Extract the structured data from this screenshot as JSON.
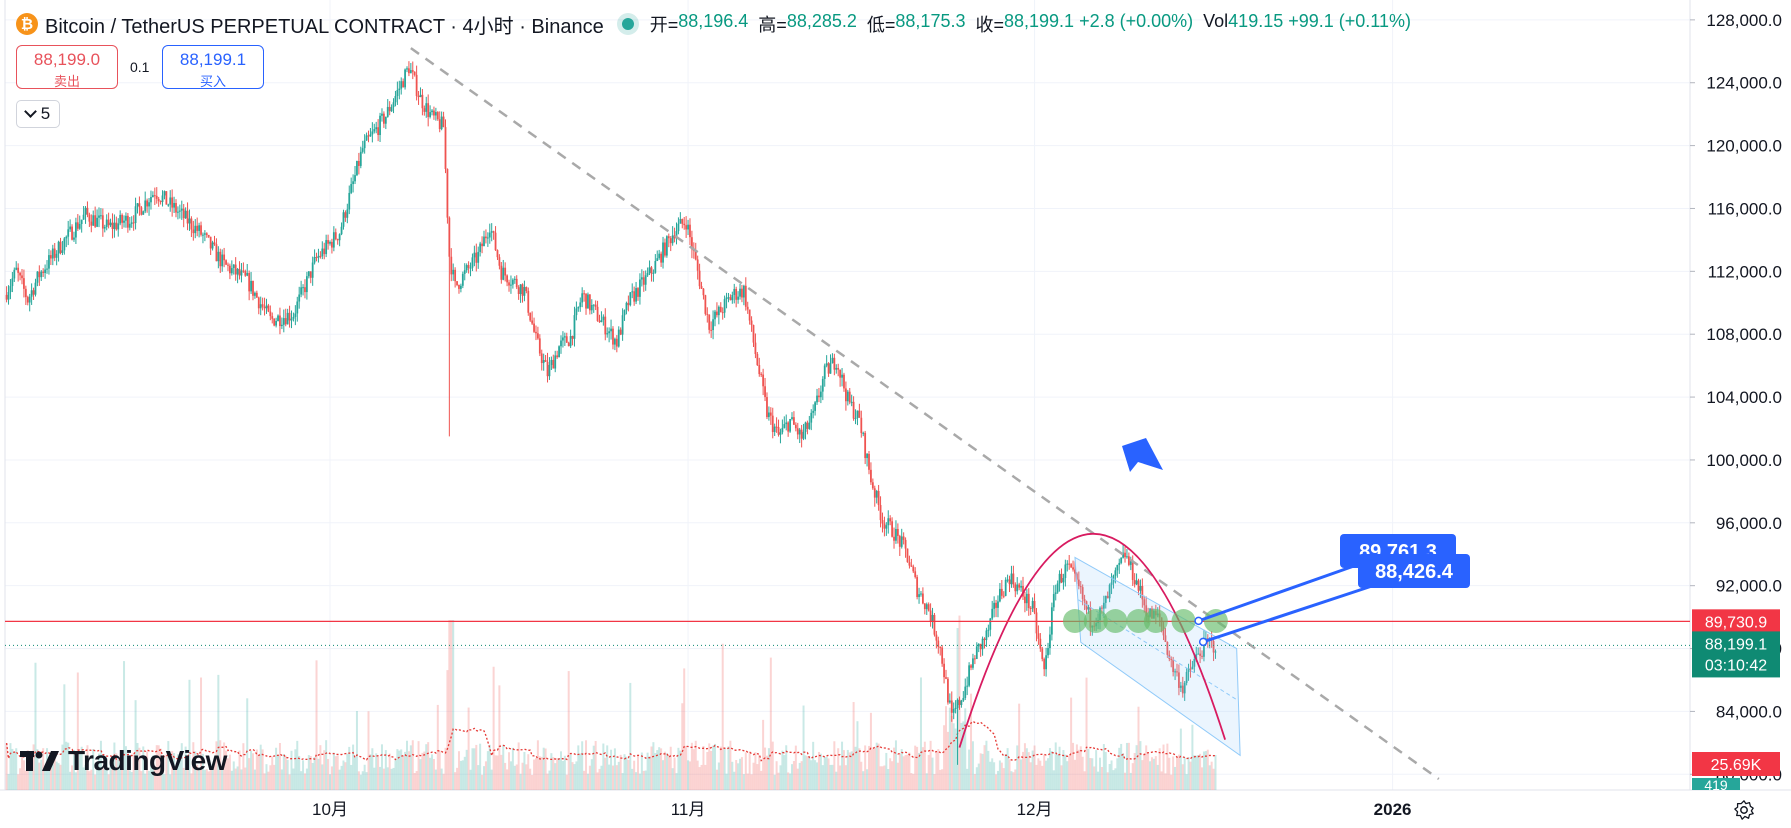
{
  "header": {
    "title": "Bitcoin / TetherUS PERPETUAL CONTRACT · 4小时 · Binance",
    "ohlc": [
      {
        "label": "开=",
        "value": "88,196.4"
      },
      {
        "label": "高=",
        "value": "88,285.2"
      },
      {
        "label": "低=",
        "value": "88,175.3"
      },
      {
        "label": "收=",
        "value": "88,199.1 +2.8 (+0.00%)"
      },
      {
        "label": "Vol",
        "value": "419.15 +99.1 (+0.11%)"
      }
    ]
  },
  "trade": {
    "sell_price": "88,199.0",
    "sell_label": "卖出",
    "quantity": "0.1",
    "buy_price": "88,199.1",
    "buy_label": "买入"
  },
  "indicator_toggle": {
    "count": "5"
  },
  "logo": {
    "text": "TradingView"
  },
  "colors": {
    "up": "#26a69a",
    "down": "#ef5350",
    "trendline": "#a9a9a9",
    "arc": "#d81b60",
    "horizontal_line": "#f23645",
    "last_price": "#0f8a73",
    "callout": "#2962ff",
    "circles": "#66bb6a",
    "channel": "#90caf9"
  },
  "chart_data": {
    "type": "candlestick",
    "timeframe": "4小时",
    "y_axis": {
      "ticks": [
        80000,
        84000,
        88000,
        92000,
        96000,
        100000,
        104000,
        108000,
        112000,
        116000,
        120000,
        124000,
        128000
      ],
      "tick_labels": [
        "80,000.0",
        "84,000.0",
        "88,000.0",
        "92,000.0",
        "96,000.0",
        "100,000.0",
        "104,000.0",
        "108,000.0",
        "112,000.0",
        "116,000.0",
        "120,000.0",
        "124,000.0",
        "128,000.0"
      ],
      "range": [
        79000,
        128500
      ]
    },
    "x_axis": {
      "range_days": [
        -28,
        62
      ],
      "ticks": [
        {
          "day": 0,
          "label": "10月"
        },
        {
          "day": 31,
          "label": "11月"
        },
        {
          "day": 61,
          "label": "12月"
        },
        {
          "day": 92,
          "label": "2026"
        }
      ]
    },
    "price_path": [
      [
        -28,
        110500
      ],
      [
        -27,
        112000
      ],
      [
        -26,
        110200
      ],
      [
        -25,
        111800
      ],
      [
        -23,
        113800
      ],
      [
        -21,
        115600
      ],
      [
        -19,
        114800
      ],
      [
        -17,
        115400
      ],
      [
        -15,
        117100
      ],
      [
        -13,
        115800
      ],
      [
        -11,
        114400
      ],
      [
        -9,
        112400
      ],
      [
        -7,
        111400
      ],
      [
        -5,
        108900
      ],
      [
        -3,
        109300
      ],
      [
        -1,
        112800
      ],
      [
        1,
        114500
      ],
      [
        3,
        119800
      ],
      [
        5,
        121900
      ],
      [
        6,
        123400
      ],
      [
        7,
        125000
      ],
      [
        8,
        123000
      ],
      [
        9,
        121800
      ],
      [
        10,
        121200
      ],
      [
        10.5,
        113000
      ],
      [
        11,
        111000
      ],
      [
        13,
        113000
      ],
      [
        14,
        115000
      ],
      [
        15,
        112000
      ],
      [
        17,
        110800
      ],
      [
        18,
        107600
      ],
      [
        19,
        105500
      ],
      [
        20,
        107200
      ],
      [
        21,
        107800
      ],
      [
        22,
        110500
      ],
      [
        24,
        108500
      ],
      [
        25,
        107500
      ],
      [
        26,
        110000
      ],
      [
        28,
        112000
      ],
      [
        30,
        114600
      ],
      [
        31,
        115200
      ],
      [
        32,
        112000
      ],
      [
        33,
        108600
      ],
      [
        34,
        109500
      ],
      [
        35,
        110500
      ],
      [
        36,
        110800
      ],
      [
        37,
        106800
      ],
      [
        38,
        103000
      ],
      [
        39,
        101500
      ],
      [
        40,
        102500
      ],
      [
        41,
        101400
      ],
      [
        42,
        102800
      ],
      [
        43,
        105500
      ],
      [
        44,
        106400
      ],
      [
        45,
        103800
      ],
      [
        46,
        102500
      ],
      [
        47,
        98800
      ],
      [
        48,
        96200
      ],
      [
        49,
        95400
      ],
      [
        50,
        94200
      ],
      [
        51,
        91800
      ],
      [
        52,
        90500
      ],
      [
        53,
        88000
      ],
      [
        54,
        83500
      ],
      [
        55,
        85200
      ],
      [
        56,
        87600
      ],
      [
        57,
        88800
      ],
      [
        58,
        91200
      ],
      [
        59,
        92600
      ],
      [
        60,
        91600
      ],
      [
        61,
        90500
      ],
      [
        62,
        86500
      ],
      [
        63,
        92000
      ],
      [
        64,
        93200
      ],
      [
        65,
        91800
      ],
      [
        66,
        89800
      ],
      [
        67,
        90300
      ],
      [
        68,
        92300
      ],
      [
        69,
        94000
      ],
      [
        70,
        92200
      ],
      [
        71,
        90200
      ],
      [
        72,
        89900
      ],
      [
        73,
        87000
      ],
      [
        74,
        85500
      ],
      [
        75,
        87200
      ],
      [
        76,
        88300
      ],
      [
        76.8,
        88199.1
      ]
    ],
    "spike_low": {
      "day": 10.4,
      "price": 101500
    },
    "last_price": {
      "value": 88199.1,
      "label": "88,199.1",
      "countdown": "03:10:42"
    },
    "horizontal_line": {
      "value": 89730.9,
      "label": "89,730.9"
    },
    "trendline": {
      "start": [
        7,
        126200
      ],
      "end": [
        96,
        79700
      ],
      "style": "dashed"
    },
    "arc": {
      "start": [
        54.5,
        81700
      ],
      "apex": [
        66,
        95300
      ],
      "end": [
        77.5,
        82200
      ]
    },
    "callouts": [
      {
        "text": "89,761.3",
        "anchor": [
          75.2,
          89761.3
        ]
      },
      {
        "text": "88,426.4",
        "anchor": [
          75.6,
          88426.4
        ]
      }
    ],
    "volume": {
      "last_label": "25.69K",
      "last_bar_label": "419"
    },
    "annotations": [
      "blue down arrow near trendline",
      "row of green circles at ~89,700 resistance",
      "descending blue channel"
    ]
  }
}
